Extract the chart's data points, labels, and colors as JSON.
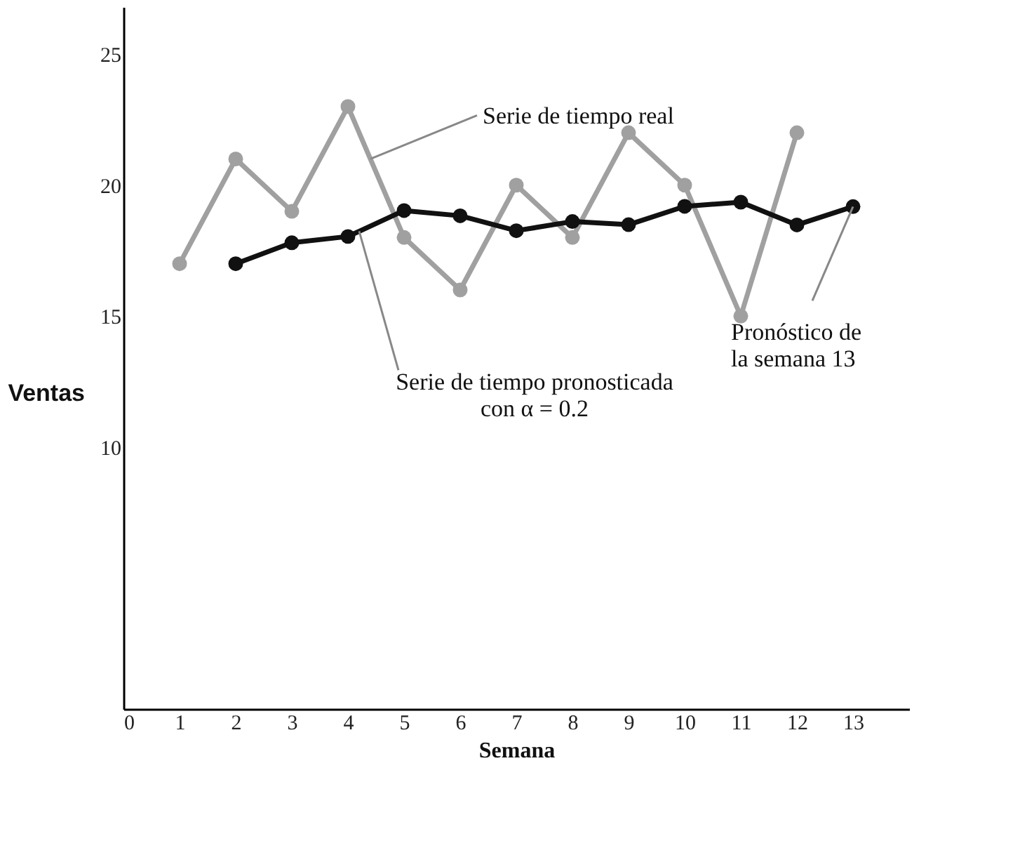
{
  "chart_data": {
    "type": "line",
    "xlabel": "Semana",
    "ylabel": "Ventas",
    "series": [
      {
        "color": "#a0a0a0",
        "x": [
          1,
          2,
          3,
          4,
          5,
          6,
          7,
          8,
          9,
          10,
          11,
          12
        ],
        "values": [
          17,
          21,
          19,
          23,
          18,
          16,
          20,
          18,
          22,
          20,
          15,
          22
        ]
      },
      {
        "color": "#111111",
        "x": [
          2,
          3,
          4,
          5,
          6,
          7,
          8,
          9,
          10,
          11,
          12,
          13
        ],
        "values": [
          17,
          17.8,
          18.04,
          19.03,
          18.83,
          18.26,
          18.61,
          18.49,
          19.19,
          19.35,
          18.48,
          19.18
        ]
      }
    ],
    "xlim": [
      0,
      14
    ],
    "xticks": [
      0,
      1,
      2,
      3,
      4,
      5,
      6,
      7,
      8,
      9,
      10,
      11,
      12,
      13
    ],
    "ylim": [
      0,
      26.8
    ],
    "yticks": [
      10,
      15,
      20,
      25
    ],
    "marker": "circle",
    "line_style": "solid",
    "grid": false,
    "annotations": [
      {
        "text": "Serie de tiempo real",
        "x": 4.4,
        "y": 21
      },
      {
        "text": "Serie de tiempo pronosticada\ncon α = 0.2",
        "x": 4.2,
        "y": 18.24
      },
      {
        "text": "Pronóstico de\nla semana 13",
        "x": 13,
        "y": 19.18
      }
    ]
  }
}
